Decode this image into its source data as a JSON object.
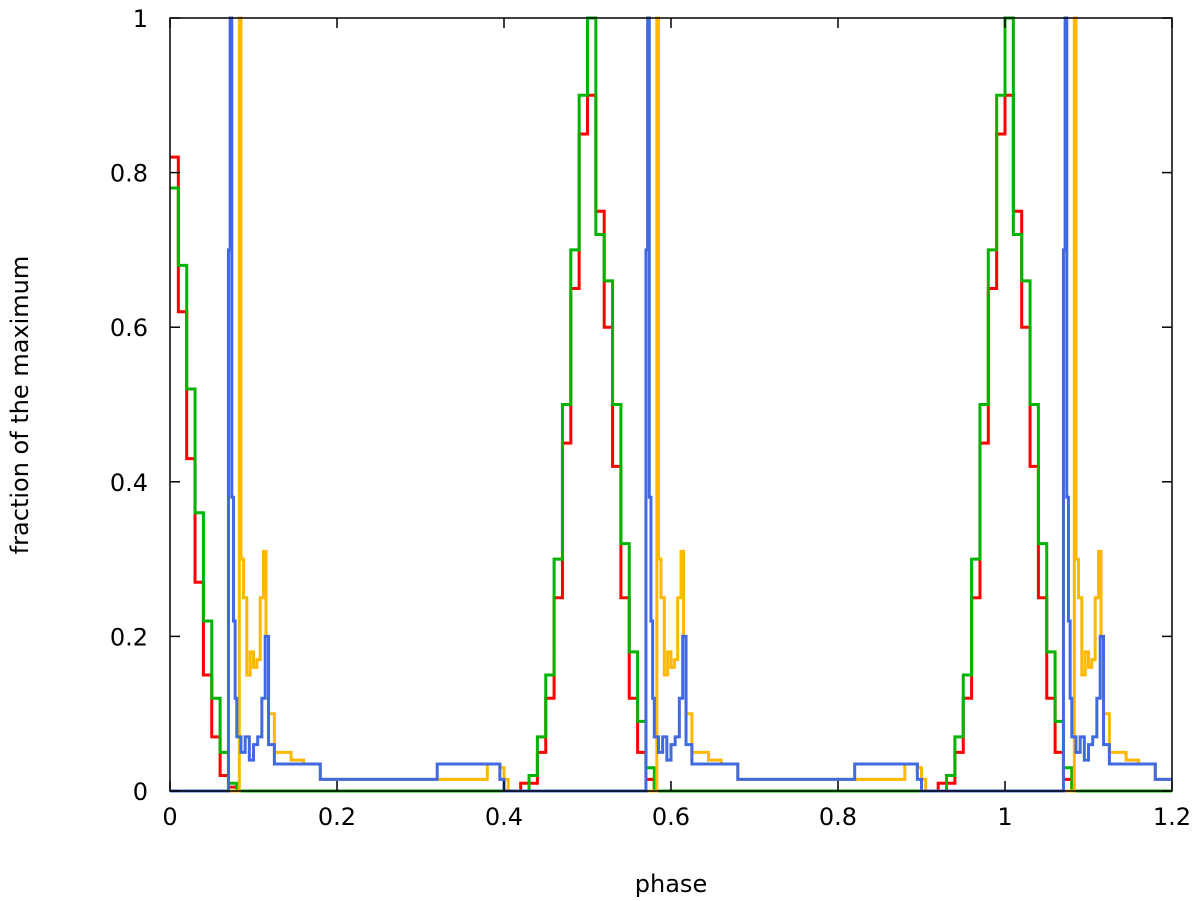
{
  "chart_data": {
    "type": "line",
    "title": "",
    "xlabel": "phase",
    "ylabel": "fraction of the maximum",
    "xlim": [
      0,
      1.2
    ],
    "ylim": [
      0,
      1
    ],
    "xticks": [
      0,
      0.2,
      0.4,
      0.6,
      0.8,
      1,
      1.2
    ],
    "xtick_labels": [
      "0",
      "0.2",
      "0.4",
      "0.6",
      "0.8",
      "1",
      "1.2"
    ],
    "yticks": [
      0,
      0.2,
      0.4,
      0.6,
      0.8,
      1
    ],
    "ytick_labels": [
      "0",
      "0.2",
      "0.4",
      "0.6",
      "0.8",
      "1"
    ],
    "grid": false,
    "legend": "none",
    "series": [
      {
        "color": "#ff0000",
        "step": true,
        "x": [
          0,
          0.01,
          0.02,
          0.03,
          0.04,
          0.05,
          0.06,
          0.07,
          0.08,
          0.4,
          0.42,
          0.44,
          0.45,
          0.46,
          0.47,
          0.48,
          0.49,
          0.5,
          0.51,
          0.52,
          0.53,
          0.54,
          0.55,
          0.56,
          0.57,
          0.58,
          0.9,
          0.92,
          0.94,
          0.95,
          0.96,
          0.97,
          0.98,
          0.99,
          1.0,
          1.01,
          1.02,
          1.03,
          1.04,
          1.05,
          1.06,
          1.07,
          1.08,
          1.2
        ],
        "y": [
          0.82,
          0.62,
          0.43,
          0.27,
          0.15,
          0.07,
          0.02,
          0.005,
          0,
          0,
          0.01,
          0.05,
          0.12,
          0.25,
          0.45,
          0.65,
          0.85,
          0.9,
          0.75,
          0.6,
          0.42,
          0.25,
          0.12,
          0.05,
          0.015,
          0,
          0,
          0.01,
          0.05,
          0.12,
          0.25,
          0.45,
          0.65,
          0.85,
          0.9,
          0.75,
          0.6,
          0.42,
          0.25,
          0.12,
          0.05,
          0.015,
          0,
          0
        ]
      },
      {
        "color": "#00b400",
        "step": true,
        "x": [
          0,
          0.01,
          0.02,
          0.03,
          0.04,
          0.05,
          0.06,
          0.07,
          0.08,
          0.41,
          0.43,
          0.44,
          0.45,
          0.46,
          0.47,
          0.48,
          0.49,
          0.5,
          0.51,
          0.52,
          0.53,
          0.54,
          0.55,
          0.56,
          0.57,
          0.58,
          0.91,
          0.93,
          0.94,
          0.95,
          0.96,
          0.97,
          0.98,
          0.99,
          1.0,
          1.01,
          1.02,
          1.03,
          1.04,
          1.05,
          1.06,
          1.07,
          1.08,
          1.2
        ],
        "y": [
          0.78,
          0.68,
          0.52,
          0.36,
          0.22,
          0.12,
          0.05,
          0.01,
          0,
          0,
          0.02,
          0.07,
          0.15,
          0.3,
          0.5,
          0.7,
          0.9,
          1.0,
          0.72,
          0.66,
          0.5,
          0.32,
          0.18,
          0.09,
          0.03,
          0,
          0,
          0.02,
          0.07,
          0.15,
          0.3,
          0.5,
          0.7,
          0.9,
          1.0,
          0.72,
          0.66,
          0.5,
          0.32,
          0.18,
          0.09,
          0.03,
          0,
          0
        ]
      },
      {
        "color": "#ffb800",
        "step": true,
        "x": [
          0,
          0.083,
          0.085,
          0.088,
          0.092,
          0.096,
          0.1,
          0.104,
          0.108,
          0.112,
          0.115,
          0.118,
          0.125,
          0.135,
          0.145,
          0.16,
          0.18,
          0.32,
          0.38,
          0.395,
          0.4,
          0.405,
          0.583,
          0.585,
          0.588,
          0.592,
          0.596,
          0.6,
          0.604,
          0.608,
          0.612,
          0.615,
          0.618,
          0.625,
          0.635,
          0.645,
          0.66,
          0.68,
          0.82,
          0.88,
          0.895,
          0.9,
          0.905,
          1.083,
          1.085,
          1.088,
          1.092,
          1.096,
          1.1,
          1.104,
          1.108,
          1.112,
          1.115,
          1.118,
          1.125,
          1.135,
          1.145,
          1.16,
          1.18,
          1.2
        ],
        "y": [
          0,
          1.0,
          0.3,
          0.25,
          0.15,
          0.18,
          0.16,
          0.17,
          0.25,
          0.31,
          0.2,
          0.1,
          0.05,
          0.05,
          0.04,
          0.035,
          0.015,
          0.015,
          0.035,
          0.03,
          0.015,
          0,
          1.0,
          0.3,
          0.25,
          0.15,
          0.18,
          0.16,
          0.17,
          0.25,
          0.31,
          0.2,
          0.1,
          0.05,
          0.05,
          0.04,
          0.035,
          0.015,
          0.015,
          0.035,
          0.03,
          0.015,
          0,
          1.0,
          0.3,
          0.25,
          0.15,
          0.18,
          0.16,
          0.17,
          0.25,
          0.31,
          0.2,
          0.1,
          0.05,
          0.05,
          0.04,
          0.035,
          0.015,
          0.015
        ]
      },
      {
        "color": "#4169e1",
        "step": true,
        "x": [
          0,
          0.07,
          0.072,
          0.074,
          0.076,
          0.078,
          0.08,
          0.085,
          0.09,
          0.095,
          0.1,
          0.105,
          0.11,
          0.114,
          0.118,
          0.125,
          0.18,
          0.32,
          0.395,
          0.4,
          0.57,
          0.572,
          0.574,
          0.576,
          0.578,
          0.58,
          0.585,
          0.59,
          0.595,
          0.6,
          0.605,
          0.61,
          0.614,
          0.618,
          0.625,
          0.68,
          0.82,
          0.895,
          0.9,
          1.07,
          1.072,
          1.074,
          1.076,
          1.078,
          1.08,
          1.085,
          1.09,
          1.095,
          1.1,
          1.105,
          1.11,
          1.114,
          1.118,
          1.125,
          1.18,
          1.2
        ],
        "y": [
          0,
          0.7,
          1.0,
          0.38,
          0.22,
          0.12,
          0.07,
          0.05,
          0.07,
          0.04,
          0.06,
          0.07,
          0.12,
          0.2,
          0.06,
          0.035,
          0.015,
          0.035,
          0.015,
          0,
          0.7,
          1.0,
          0.38,
          0.22,
          0.12,
          0.07,
          0.05,
          0.07,
          0.04,
          0.06,
          0.07,
          0.12,
          0.2,
          0.06,
          0.035,
          0.015,
          0.035,
          0.015,
          0,
          0.7,
          1.0,
          0.38,
          0.22,
          0.12,
          0.07,
          0.05,
          0.07,
          0.04,
          0.06,
          0.07,
          0.12,
          0.2,
          0.06,
          0.035,
          0.015,
          0.015
        ]
      }
    ]
  }
}
